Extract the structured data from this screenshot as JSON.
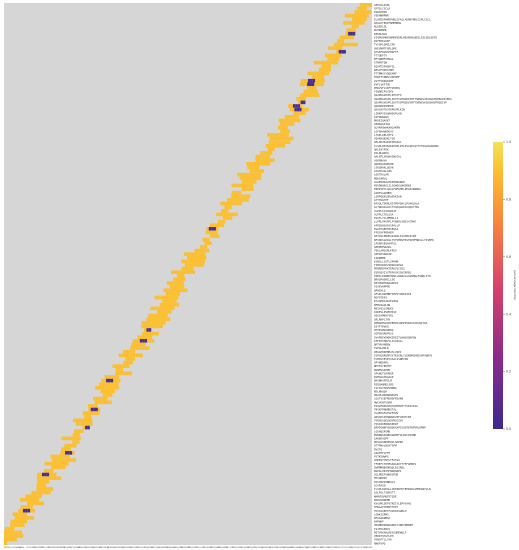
{
  "chart_data": {
    "type": "heatmap",
    "title": "",
    "xlabel": "",
    "ylabel": "",
    "colorbar": {
      "label": "percentage identity",
      "range": [
        0.0,
        1.0
      ],
      "ticks": [
        "1.0",
        "0.8",
        "0.6",
        "0.4",
        "0.2",
        "0.0"
      ],
      "colormap": [
        "#3b2a8f",
        "#8b2a8a",
        "#d8426a",
        "#f7853f",
        "#fcbf2f",
        "#f2e35a"
      ]
    },
    "background_color": "#d6d6d6",
    "high_color": "#fcbf2f",
    "low_color": "#4a2f8c",
    "cells_note": "Diagonal alignment band; nearly all cells ~0.9 identity, occasional low-identity cells ~0.1",
    "row_labels": [
      "SEPLKLKVKL",
      "CMTSLCSCLA",
      "PSRCHKKK",
      "YEDHNMPNR",
      "ELQPEDFNMVPHRLGFASLAKRNYMKLCSPLCSCL",
      "QQGLKTEDIFNMPMRNL",
      "NLKEDLDL",
      "NLHKNNML",
      "KEKDLNLK",
      "EIQPKAMKEVNMDKEDRLMEARKNLNESLDILDELDEFE",
      "DSFKEDLDKF",
      "TVYGPLQPELSFK",
      "VKEVNMTFGPLQPE",
      "QTVKFRVDSFDKFTF",
      "FTTQKFTV",
      "MFTQNMFVFRGA",
      "STNMVTQN",
      "EQVMTSFKEDFSL",
      "RESVFVNVSTNM",
      "FTTNMGCVDQEAMF",
      "FKNFTTNMSCVDEAMF",
      "GVTTVKRQDIMF",
      "KVFLVKFTVK",
      "PHKVSFLVKFTVKPKQ",
      "YSNQRIPSVIKV",
      "QSAPRGVDVPLIKSTFQ",
      "QSAPRGVDVPLIKVTVVPRGDIKMTTSRNIGVKSDGKHVPRGDIVPKG",
      "QSAPRGVDVPLIKVTVVPRGDIKMTTSRNGVKSDGKHVPRGDIVP",
      "QGRGRPNIHPPN",
      "QSAGAVTDVIKPDVPLKIN",
      "LIRKPYDSARHQVPLKN",
      "AVFNGNQQQ",
      "MKDEIQAGKT",
      "AEWRAAKIAA",
      "QLVMAQWAKAWLAKRN",
      "LGFNAAWKDGVG",
      "LTQELQELQTTV",
      "VEAKHQEDKLTGK",
      "SRLDKVKAKIESELRAL",
      "ILSRLDKVKAKIESELRTLKSLQELQTTVYQQLRAAWAMA",
      "QKLEAYFEK",
      "IDLNLDKKQ",
      "QALNTLVKQAASNIGAL",
      "ASKPNAVA",
      "QQDEQAKQEGHN",
      "LSKSNAKLGEVN",
      "LDGTKAALGIK",
      "LDETKALAR",
      "MQKLNMLQ",
      "ALKERDKALEKIMSNANGD",
      "MIKDNQKGLILSGWEGLNKDRKE",
      "FNEKVETLQAALFKMSHELPKLNIRWDKG",
      "LDRFVAAKMKK",
      "LSRPQEKGGRANYKIAN",
      "GTTTRGHTF",
      "RFAQLTDKRLEDTPDPGHILPVAKLKLK",
      "ALTDDGGSLPCTVQAQAGEAVQQGTTRL",
      "VLPPLISISSRAIT",
      "VLPPLITDLSSA",
      "PSAFLYCLPMMSLLI",
      "LLPRLPAVFPLFVNERLVNISYCMAF",
      "AFRQVHSAFASPALLP",
      "EGADYQEKTRSEQSA",
      "FFEQYFPRPAEM",
      "SRTQSIPNVKAIAWSLISVAMAIVAM",
      "NFVDDSLKASLYVFVMPGFKSTRPPFNDSLLTISEMS",
      "LPGRPSEQAVMTSL",
      "QEDPKPWGSDL",
      "YEELAMSSRLKPGV",
      "QIEGPSDRAIE",
      "IIRDMMR",
      "ESNSLLSSTLSPAHN",
      "TIMSVRAKVIRSDGSPGA",
      "PDNRREMYKTERAVSCGSI",
      "ESRSQVIYVTRFKVAIQVIRPEG",
      "TNHILDGNEDHGNLLRANALASGNHQLFQNQLSTR",
      "DRAGPADHCLLDG",
      "DPIHSRHSRAADHAI",
      "VSVKVHPPPE",
      "QPHIHLQ",
      "AFSKLKGPMNTIHPVYVRDVIIE",
      "DGFDTDFA",
      "EYAQHPAIIAELMAQ",
      "NFMVAGQLDN",
      "RNIYQSLVNGKS",
      "PADESLPSPDHISI",
      "GQGSAMKHCVRL",
      "SRLRHPLTYH",
      "DPMARMLKIKPEHIDIGKPPSRAVSVKLNITDA",
      "ESYFTKWSQ",
      "VHTESMAKGMRQ",
      "SGPSKGRKPVIG",
      "GVAPDEVDKHKIDEITLHWSAQKPGW",
      "IPFRTIHRYVLIVLRALL",
      "QMTVKAHREW",
      "TGPQLDDLR",
      "DEAAPKKPMEAYLVQPI",
      "SSPGGKRQRFSVTESGRLYLEKNMSKKDSAPVWRVS",
      "FLMVGVEVKYVAALVSNHVIN",
      "GPYNQDAPL",
      "NMTFAYEDHYT",
      "WGNMSGIEPR",
      "SPVNGTGAVNSR",
      "KGMSGGTDAAAP",
      "DKVNKAFPSLM",
      "RIRSHNMELSRG",
      "TSCIGTHQPVHDMA",
      "RDLNKQQA",
      "PRAHLDKRNAWKGPS",
      "LGGTVSEFRGRDFRSAKN",
      "HWCVGNTVSRM",
      "ESQVEWPGCHQYQPKMVPYTVEAVASA",
      "TNYKFPNKMDGTAL",
      "VLQEPGFATGEFDVW",
      "GNSSKSIHSNWWVVPFLMQTCNF",
      "VYRGDSQELHDYMSGSVG",
      "YQSDIDERWSKPKRT",
      "ERPDSWNFQVDDKGAPISGHTEFRPVRLRPNP",
      "LGEHQSPSMK",
      "MVNNQGSDRDSGRPDFQLWVCPSQMD",
      "SAKEKAGPF",
      "RKSAGSNKPHQVLSKEKP",
      "DTTPWVLNSATSPM",
      "RVSTQ",
      "LNAMTFLFTE",
      "YKTKSHWKG",
      "CMDRSTTNYLFFAFGS",
      "TFHEFCTKTMSIRGIDYTYFFGMNTS",
      "GWRMMNEKDHQQLEGIRQL",
      "RGPALVRISFNNQGNPI",
      "SGLMEEFSWKEGPQR",
      "MTVQRKNY",
      "PASHIPQVNRQLS",
      "SCVPASH",
      "TLVPLKGKSLLVRTNRYDTEERSWLSEMPANTVLN",
      "LDLPSLTSEKGTT",
      "WHMVEQMQPITGDE",
      "KDRVGRNPMH",
      "KVGVMLDDFVTKEIYLEPFVAAG",
      "TMRAAVYDERTHYPY",
      "YKSSVQEPTFAVKPASGMLH",
      "LGNKIGPMS",
      "PHSAQKNMSA",
      "RAPWHF",
      "VDQMRPKHRAANQTCIRDVPNWEH",
      "TSIFKGPWCV",
      "DQTVDKAHLRESGQMEWQLF",
      "VERKTQTAYLEH",
      "YDNSFTLLSYK",
      "RNKFVPQ"
    ]
  }
}
